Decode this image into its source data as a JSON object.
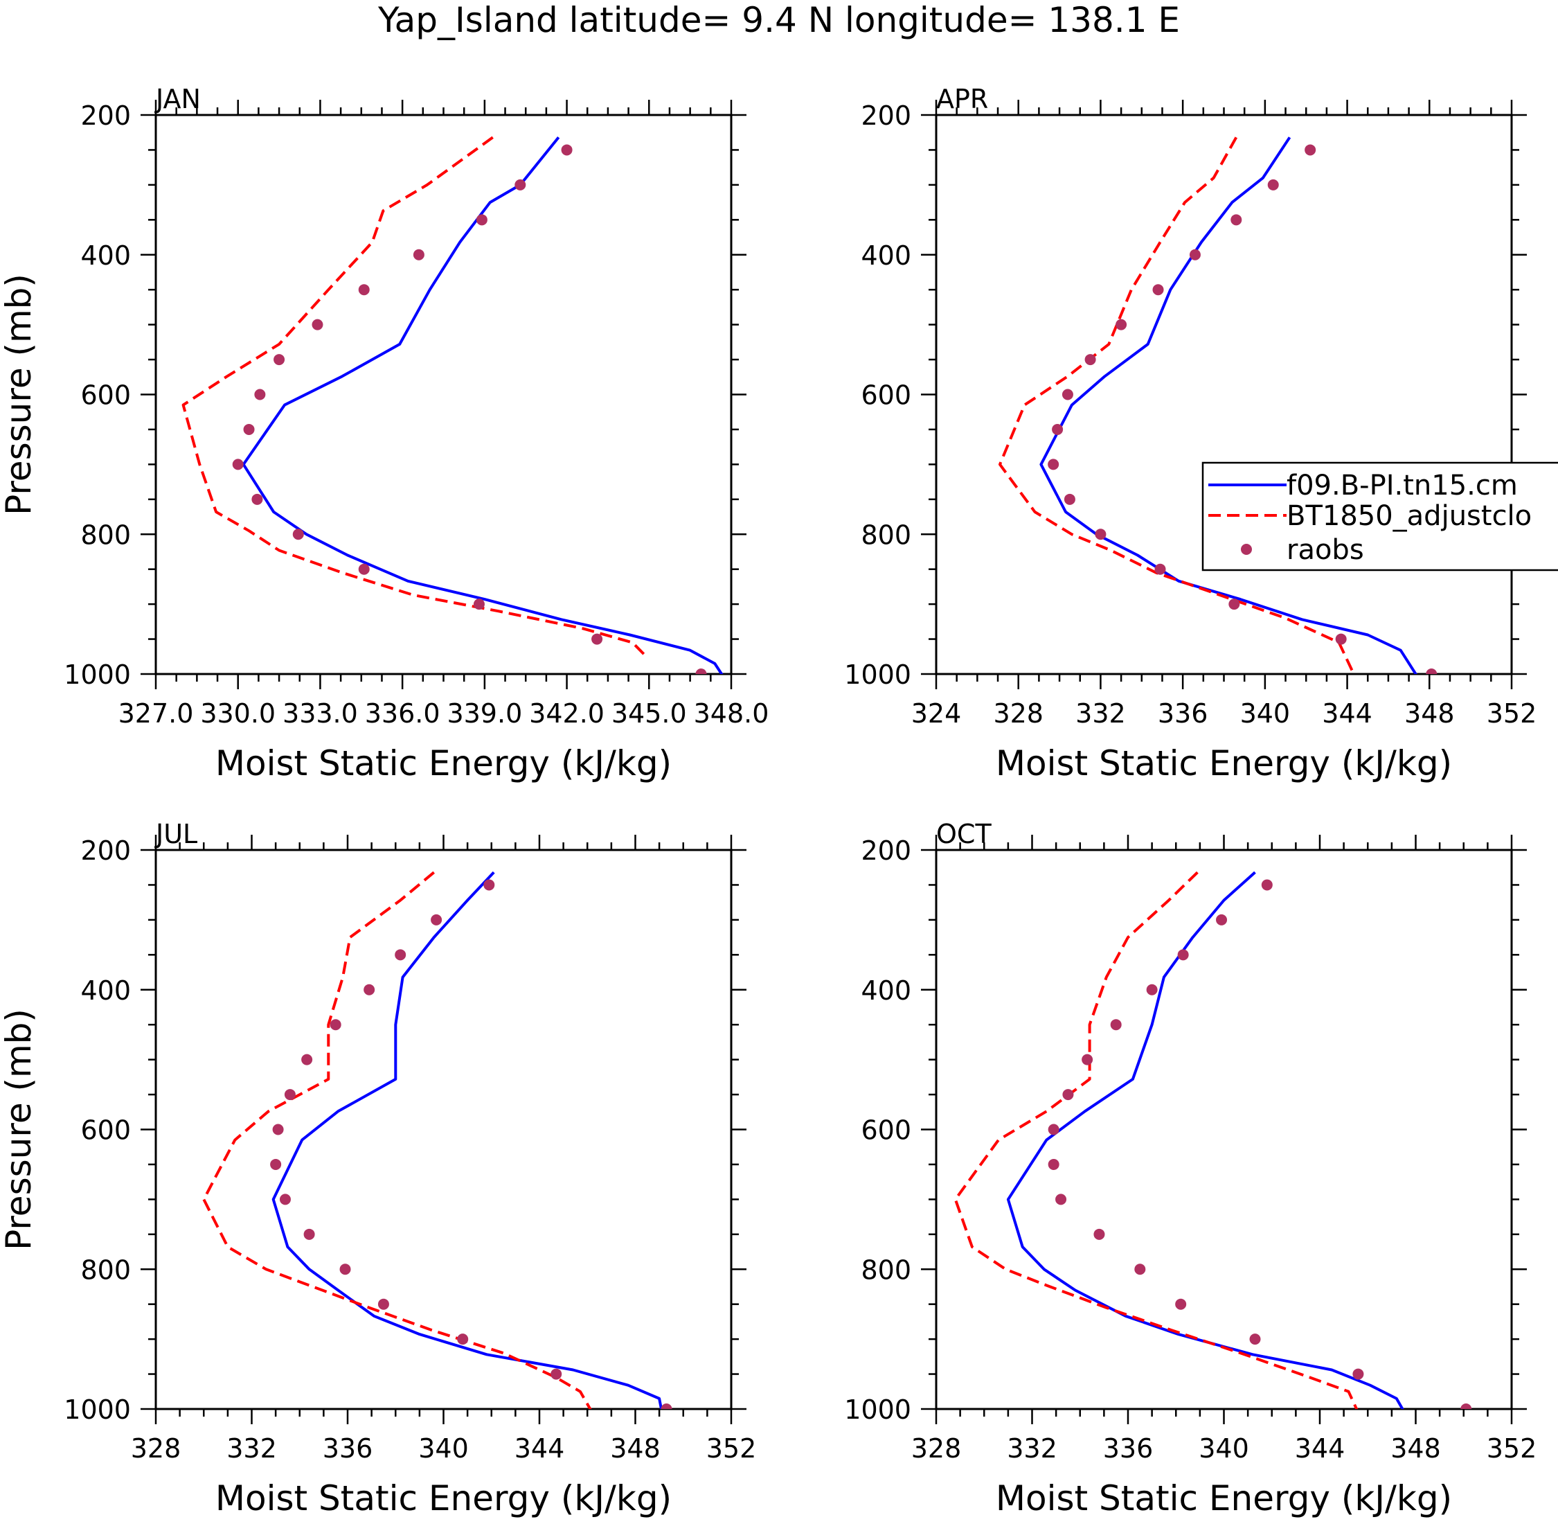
{
  "figure_title": "Yap_Island  latitude= 9.4 N longitude= 138.1 E",
  "colors": {
    "model": "#0000ff",
    "control": "#ff0000",
    "raobs": "#b03060"
  },
  "legend": {
    "placement": "right of APR panel",
    "entries": [
      {
        "label": "f09.B-PI.tn15.cm",
        "style": "solid-line"
      },
      {
        "label": "BT1850_adjustclo",
        "style": "dashed-line"
      },
      {
        "label": "raobs",
        "style": "dot"
      }
    ]
  },
  "chart_data": [
    {
      "type": "line",
      "panel": "JAN",
      "title": "JAN",
      "xlabel": "Moist Static Energy (kJ/kg)",
      "ylabel": "Pressure (mb)",
      "xlim": [
        327,
        348
      ],
      "ylim": [
        1000,
        200
      ],
      "xticks": [
        327,
        330,
        333,
        336,
        339,
        342,
        345,
        348
      ],
      "xticklabels": [
        "327.0",
        "330.0",
        "333.0",
        "336.0",
        "339.0",
        "342.0",
        "345.0",
        "348.0"
      ],
      "yticks": [
        200,
        400,
        600,
        800,
        1000
      ],
      "yticklabels": [
        "200",
        "400",
        "600",
        "800",
        "1000"
      ],
      "series": [
        {
          "name": "f09.B-PI.tn15.cm",
          "style": "solid",
          "x": [
            341.7,
            340.3,
            339.2,
            338.1,
            337.0,
            335.9,
            333.8,
            331.7,
            330.2,
            331.3,
            332.5,
            334.0,
            336.2,
            339.0,
            341.8,
            344.3,
            346.5,
            347.4,
            347.7
          ],
          "p": [
            232,
            300,
            325,
            382,
            450,
            528,
            574,
            615,
            700,
            768,
            800,
            830,
            867,
            893,
            922,
            944,
            966,
            985,
            1003
          ]
        },
        {
          "name": "BT1850_adjustclo",
          "style": "dashed",
          "x": [
            339.3,
            336.9,
            335.3,
            334.9,
            333.3,
            331.5,
            329.6,
            328.0,
            328.6,
            329.2,
            330.4,
            331.5,
            333.8,
            336.4,
            339.5,
            342.6,
            344.4,
            344.9
          ],
          "p": [
            232,
            300,
            337,
            382,
            450,
            528,
            574,
            615,
            700,
            768,
            795,
            823,
            855,
            887,
            910,
            935,
            955,
            975
          ]
        },
        {
          "name": "raobs",
          "style": "points",
          "x": [
            342.0,
            340.3,
            338.9,
            336.6,
            334.6,
            332.9,
            331.5,
            330.8,
            330.4,
            330.0,
            330.7,
            332.2,
            334.6,
            338.8,
            343.1,
            346.9
          ],
          "p": [
            250,
            300,
            350,
            400,
            450,
            500,
            550,
            600,
            650,
            700,
            750,
            800,
            850,
            900,
            950,
            1000
          ]
        }
      ]
    },
    {
      "type": "line",
      "panel": "APR",
      "title": "APR",
      "xlabel": "Moist Static Energy (kJ/kg)",
      "ylabel": "",
      "xlim": [
        324,
        352
      ],
      "ylim": [
        1000,
        200
      ],
      "xticks": [
        324,
        328,
        332,
        336,
        340,
        344,
        348,
        352
      ],
      "xticklabels": [
        "324",
        "328",
        "332",
        "336",
        "340",
        "344",
        "348",
        "352"
      ],
      "yticks": [
        200,
        400,
        600,
        800,
        1000
      ],
      "yticklabels": [
        "200",
        "400",
        "600",
        "800",
        "1000"
      ],
      "series": [
        {
          "name": "f09.B-PI.tn15.cm",
          "style": "solid",
          "x": [
            341.2,
            339.9,
            338.4,
            336.9,
            335.4,
            334.3,
            332.2,
            330.6,
            329.1,
            330.3,
            331.8,
            333.8,
            335.8,
            338.8,
            341.8,
            345.0,
            346.6,
            347.4
          ],
          "p": [
            232,
            290,
            325,
            382,
            450,
            528,
            574,
            615,
            700,
            768,
            800,
            830,
            867,
            893,
            922,
            944,
            966,
            1003
          ]
        },
        {
          "name": "BT1850_adjustclo",
          "style": "dashed",
          "x": [
            338.6,
            337.5,
            336.1,
            334.9,
            333.5,
            332.4,
            330.4,
            328.3,
            327.1,
            328.8,
            330.6,
            332.5,
            334.7,
            337.8,
            341.0,
            343.6,
            344.4
          ],
          "p": [
            232,
            290,
            325,
            382,
            450,
            528,
            574,
            615,
            700,
            768,
            800,
            823,
            855,
            887,
            920,
            955,
            1005
          ]
        },
        {
          "name": "raobs",
          "style": "points",
          "x": [
            342.2,
            340.4,
            338.6,
            336.6,
            334.8,
            333.0,
            331.5,
            330.4,
            329.9,
            329.7,
            330.5,
            332.0,
            334.9,
            338.5,
            343.7,
            348.1
          ],
          "p": [
            250,
            300,
            350,
            400,
            450,
            500,
            550,
            600,
            650,
            700,
            750,
            800,
            850,
            900,
            950,
            1000
          ]
        }
      ]
    },
    {
      "type": "line",
      "panel": "JUL",
      "title": "JUL",
      "xlabel": "Moist Static Energy (kJ/kg)",
      "ylabel": "Pressure (mb)",
      "xlim": [
        328,
        352
      ],
      "ylim": [
        1000,
        200
      ],
      "xticks": [
        328,
        332,
        336,
        340,
        344,
        348,
        352
      ],
      "xticklabels": [
        "328",
        "332",
        "336",
        "340",
        "344",
        "348",
        "352"
      ],
      "yticks": [
        200,
        400,
        600,
        800,
        1000
      ],
      "yticklabels": [
        "200",
        "400",
        "600",
        "800",
        "1000"
      ],
      "series": [
        {
          "name": "f09.B-PI.tn15.cm",
          "style": "solid",
          "x": [
            342.1,
            341.0,
            339.6,
            338.3,
            338.0,
            338.0,
            335.6,
            334.1,
            332.9,
            333.5,
            334.4,
            335.6,
            337.1,
            339.0,
            341.8,
            345.4,
            347.7,
            349.0,
            349.1
          ],
          "p": [
            232,
            272,
            325,
            382,
            450,
            528,
            574,
            615,
            700,
            768,
            800,
            830,
            867,
            893,
            922,
            944,
            966,
            985,
            1003
          ]
        },
        {
          "name": "BT1850_adjustclo",
          "style": "dashed",
          "x": [
            339.6,
            338.2,
            336.1,
            335.8,
            335.2,
            335.2,
            332.7,
            331.3,
            330.0,
            331.0,
            332.6,
            334.4,
            336.9,
            339.5,
            342.5,
            344.7,
            345.7,
            346.2
          ],
          "p": [
            232,
            272,
            325,
            382,
            450,
            528,
            574,
            615,
            700,
            768,
            800,
            823,
            855,
            887,
            920,
            955,
            975,
            1005
          ]
        },
        {
          "name": "raobs",
          "style": "points",
          "x": [
            341.9,
            339.7,
            338.2,
            336.9,
            335.5,
            334.3,
            333.6,
            333.1,
            333.0,
            333.4,
            334.4,
            335.9,
            337.5,
            340.8,
            344.7,
            349.3
          ],
          "p": [
            250,
            300,
            350,
            400,
            450,
            500,
            550,
            600,
            650,
            700,
            750,
            800,
            850,
            900,
            950,
            1000
          ]
        }
      ]
    },
    {
      "type": "line",
      "panel": "OCT",
      "title": "OCT",
      "xlabel": "Moist Static Energy (kJ/kg)",
      "ylabel": "",
      "xlim": [
        328,
        352
      ],
      "ylim": [
        1000,
        200
      ],
      "xticks": [
        328,
        332,
        336,
        340,
        344,
        348,
        352
      ],
      "xticklabels": [
        "328",
        "332",
        "336",
        "340",
        "344",
        "348",
        "352"
      ],
      "yticks": [
        200,
        400,
        600,
        800,
        1000
      ],
      "yticklabels": [
        "200",
        "400",
        "600",
        "800",
        "1000"
      ],
      "series": [
        {
          "name": "f09.B-PI.tn15.cm",
          "style": "solid",
          "x": [
            341.3,
            340.0,
            338.7,
            337.5,
            337.0,
            336.2,
            334.2,
            332.6,
            331.0,
            331.6,
            332.5,
            333.8,
            335.9,
            338.1,
            341.2,
            344.5,
            346.1,
            347.2,
            347.5
          ],
          "p": [
            232,
            272,
            325,
            382,
            450,
            528,
            574,
            615,
            700,
            768,
            800,
            830,
            867,
            893,
            922,
            944,
            966,
            985,
            1003
          ]
        },
        {
          "name": "BT1850_adjustclo",
          "style": "dashed",
          "x": [
            338.9,
            337.7,
            336.0,
            335.1,
            334.4,
            334.4,
            332.6,
            330.6,
            328.8,
            329.5,
            330.9,
            332.6,
            335.1,
            337.8,
            340.7,
            343.6,
            345.2,
            345.6
          ],
          "p": [
            232,
            272,
            325,
            382,
            450,
            528,
            574,
            615,
            700,
            768,
            800,
            823,
            855,
            887,
            920,
            955,
            975,
            1005
          ]
        },
        {
          "name": "raobs",
          "style": "points",
          "x": [
            341.8,
            339.9,
            338.3,
            337.0,
            335.5,
            334.3,
            333.5,
            332.9,
            332.9,
            333.2,
            334.8,
            336.5,
            338.2,
            341.3,
            345.6,
            350.1
          ],
          "p": [
            250,
            300,
            350,
            400,
            450,
            500,
            550,
            600,
            650,
            700,
            750,
            800,
            850,
            900,
            950,
            1000
          ]
        }
      ]
    }
  ]
}
